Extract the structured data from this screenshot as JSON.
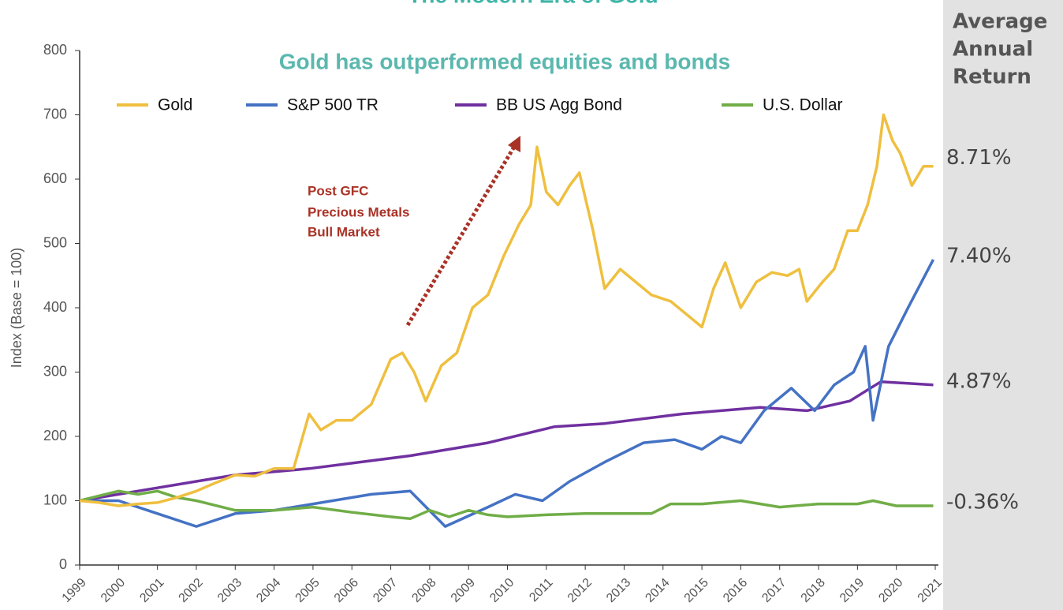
{
  "chart_data": {
    "type": "line",
    "title": "The Modern Era of Gold",
    "subtitle": "Gold has outperformed equities and bonds",
    "y_label": "Index (Base = 100)",
    "annotation": [
      "Post GFC",
      "Precious Metals",
      "Bull Market"
    ],
    "return_header": [
      "Average",
      "Annual",
      "Return"
    ],
    "xlim": [
      1999,
      2021
    ],
    "xticks": [
      1999,
      2000,
      2001,
      2002,
      2003,
      2004,
      2005,
      2006,
      2007,
      2008,
      2009,
      2010,
      2011,
      2012,
      2013,
      2014,
      2015,
      2016,
      2017,
      2018,
      2019,
      2020,
      2021
    ],
    "ylim": [
      0,
      800
    ],
    "yticks": [
      0,
      100,
      200,
      300,
      400,
      500,
      600,
      700,
      800
    ],
    "series": [
      {
        "name": "Gold",
        "color": "#efbf3f",
        "return_label": "8.71%",
        "x": [
          1999,
          1999.5,
          2000,
          2000.5,
          2001,
          2001.5,
          2002,
          2002.5,
          2003,
          2003.5,
          2004,
          2004.5,
          2004.9,
          2005.2,
          2005.6,
          2006,
          2006.5,
          2007,
          2007.3,
          2007.6,
          2007.9,
          2008.3,
          2008.7,
          2009.1,
          2009.5,
          2009.9,
          2010.3,
          2010.6,
          2010.76,
          2011,
          2011.3,
          2011.6,
          2011.85,
          2012.2,
          2012.5,
          2012.9,
          2013.3,
          2013.7,
          2014.2,
          2014.6,
          2015,
          2015.3,
          2015.6,
          2016,
          2016.4,
          2016.8,
          2017.2,
          2017.5,
          2017.7,
          2018.1,
          2018.4,
          2018.75,
          2019,
          2019.26,
          2019.5,
          2019.67,
          2019.9,
          2020.1,
          2020.4,
          2020.7,
          2020.95
        ],
        "values": [
          100,
          97,
          92,
          95,
          97,
          105,
          115,
          128,
          140,
          138,
          150,
          150,
          235,
          210,
          225,
          225,
          250,
          320,
          330,
          300,
          255,
          310,
          330,
          400,
          420,
          480,
          530,
          560,
          650,
          580,
          560,
          590,
          610,
          520,
          430,
          460,
          440,
          420,
          410,
          390,
          370,
          430,
          470,
          400,
          440,
          455,
          450,
          460,
          410,
          440,
          460,
          520,
          520,
          560,
          620,
          700,
          660,
          640,
          590,
          620,
          620
        ]
      },
      {
        "name": "S&P 500 TR",
        "color": "#4472c4",
        "return_label": "7.40%",
        "x": [
          1999,
          2000,
          2001,
          2002,
          2003,
          2004,
          2005,
          2006.5,
          2007.5,
          2008.4,
          2009.5,
          2010.2,
          2010.9,
          2011.6,
          2012.5,
          2013.5,
          2014.3,
          2015,
          2015.5,
          2016,
          2016.6,
          2017.3,
          2017.9,
          2018.4,
          2018.9,
          2019.2,
          2019.4,
          2019.8,
          2020.3,
          2020.95
        ],
        "values": [
          100,
          100,
          80,
          60,
          80,
          85,
          95,
          110,
          115,
          60,
          90,
          110,
          100,
          130,
          160,
          190,
          195,
          180,
          200,
          190,
          240,
          275,
          240,
          280,
          300,
          340,
          225,
          340,
          400,
          475
        ]
      },
      {
        "name": "BB US Agg Bond",
        "color": "#7030a0",
        "return_label": "4.87%",
        "x": [
          1999,
          2000,
          2001,
          2002,
          2003,
          2004,
          2004.9,
          2007.5,
          2009.5,
          2011.2,
          2012.5,
          2014.5,
          2016.5,
          2017.7,
          2018.8,
          2019.6,
          2020.95
        ],
        "values": [
          100,
          110,
          120,
          130,
          140,
          145,
          150,
          170,
          190,
          215,
          220,
          235,
          245,
          240,
          255,
          285,
          280
        ]
      },
      {
        "name": "U.S. Dollar",
        "color": "#70ad47",
        "return_label": "-0.36%",
        "x": [
          1999,
          2000,
          2000.5,
          2001,
          2001.5,
          2002,
          2003,
          2004,
          2005,
          2006,
          2007,
          2007.5,
          2008,
          2008.5,
          2009,
          2009.5,
          2010,
          2011,
          2012,
          2013,
          2013.7,
          2014.2,
          2015,
          2016,
          2017,
          2018,
          2019,
          2019.4,
          2020,
          2020.95
        ],
        "values": [
          100,
          115,
          110,
          115,
          105,
          100,
          85,
          85,
          90,
          82,
          75,
          72,
          85,
          75,
          85,
          78,
          75,
          78,
          80,
          80,
          80,
          95,
          95,
          100,
          90,
          95,
          95,
          100,
          92,
          92
        ]
      }
    ]
  }
}
